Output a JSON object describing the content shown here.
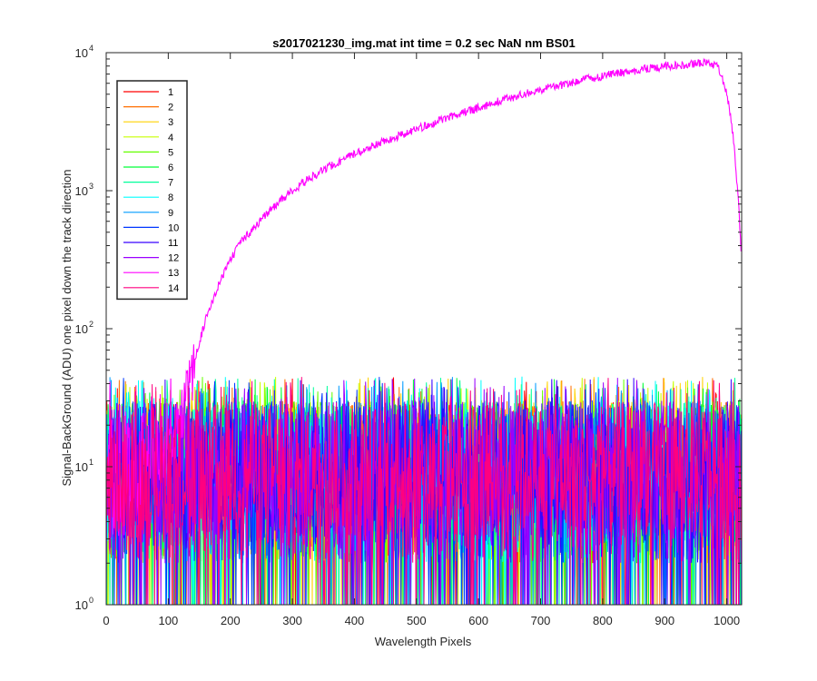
{
  "chart_data": {
    "type": "line",
    "title": "s2017021230_img.mat int time = 0.2 sec  NaN nm BS01",
    "xlabel": "Wavelength Pixels",
    "ylabel": "Signal-BackGround (ADU) one pixel down the track direction",
    "xlim": [
      0,
      1024
    ],
    "ylim": [
      1,
      10000
    ],
    "yscale": "log",
    "grid": false,
    "legend_position": "top-left",
    "x_ticks": [
      "0",
      "100",
      "200",
      "300",
      "400",
      "500",
      "600",
      "700",
      "800",
      "900",
      "1000"
    ],
    "x_tick_values": [
      0,
      100,
      200,
      300,
      400,
      500,
      600,
      700,
      800,
      900,
      1000
    ],
    "y_ticks": [
      {
        "value": 1,
        "base": "10",
        "exp": "0"
      },
      {
        "value": 10,
        "base": "10",
        "exp": "1"
      },
      {
        "value": 100,
        "base": "10",
        "exp": "2"
      },
      {
        "value": 1000,
        "base": "10",
        "exp": "3"
      },
      {
        "value": 10000,
        "base": "10",
        "exp": "4"
      }
    ],
    "noise_floor": {
      "min": 1,
      "max": 45,
      "typical": [
        2,
        30
      ]
    },
    "series": [
      {
        "name": "1",
        "color": "#ff0000"
      },
      {
        "name": "2",
        "color": "#ff6f00"
      },
      {
        "name": "3",
        "color": "#ffd200"
      },
      {
        "name": "4",
        "color": "#c8ff00"
      },
      {
        "name": "5",
        "color": "#64ff00"
      },
      {
        "name": "6",
        "color": "#00ff37"
      },
      {
        "name": "7",
        "color": "#00ff9b"
      },
      {
        "name": "8",
        "color": "#00ffff"
      },
      {
        "name": "9",
        "color": "#009bff"
      },
      {
        "name": "10",
        "color": "#0037ff"
      },
      {
        "name": "11",
        "color": "#3700ff"
      },
      {
        "name": "12",
        "color": "#9b00ff"
      },
      {
        "name": "13",
        "color": "#ff00ff",
        "signal": {
          "x": [
            0,
            60,
            100,
            120,
            140,
            160,
            180,
            200,
            220,
            250,
            280,
            300,
            330,
            360,
            400,
            450,
            500,
            550,
            600,
            650,
            700,
            750,
            800,
            850,
            900,
            950,
            970,
            985,
            1000,
            1010,
            1020,
            1024
          ],
          "y": [
            3,
            6,
            12,
            25,
            55,
            115,
            200,
            320,
            440,
            620,
            850,
            1000,
            1250,
            1500,
            1850,
            2300,
            2800,
            3400,
            4000,
            4700,
            5400,
            6100,
            6800,
            7400,
            8000,
            8300,
            8500,
            8000,
            5200,
            2600,
            700,
            300
          ]
        }
      },
      {
        "name": "14",
        "color": "#ff0080"
      }
    ]
  }
}
